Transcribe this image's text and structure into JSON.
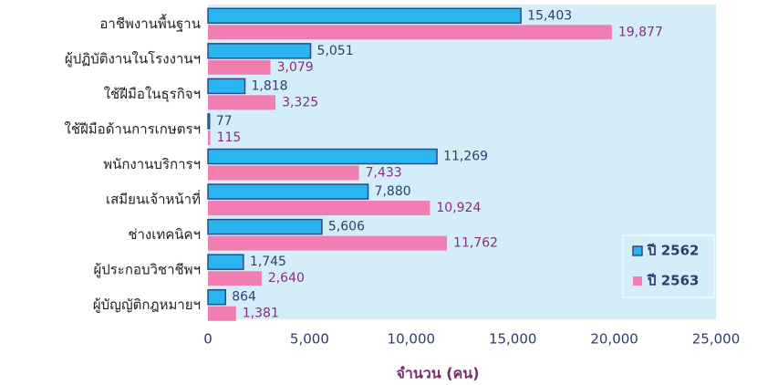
{
  "chart_data": {
    "type": "bar",
    "orientation": "horizontal",
    "categories": [
      "อาชีพงานพื้นฐาน",
      "ผู้ปฏิบัติงานในโรงงานฯ",
      "ใช้ฝีมือในธุรกิจฯ",
      "ใช้ฝีมือด้านการเกษตรฯ",
      "พนักงานบริการฯ",
      "เสมียนเจ้าหน้าที่",
      "ช่างเทคนิคฯ",
      "ผู้ประกอบวิชาชีพฯ",
      "ผู้บัญญัติกฎหมายฯ"
    ],
    "series": [
      {
        "name": "ปี 2562",
        "color": "#29b6f0",
        "values": [
          15403,
          5051,
          1818,
          77,
          11269,
          7880,
          5606,
          1745,
          864
        ],
        "value_labels": [
          "15,403",
          "5,051",
          "1,818",
          "77",
          "11,269",
          "7,880",
          "5,606",
          "1,745",
          "864"
        ]
      },
      {
        "name": "ปี 2563",
        "color": "#f07eb0",
        "values": [
          19877,
          3079,
          3325,
          115,
          7433,
          10924,
          11762,
          2640,
          1381
        ],
        "value_labels": [
          "19,877",
          "3,079",
          "3,325",
          "115",
          "7,433",
          "10,924",
          "11,762",
          "2,640",
          "1,381"
        ]
      }
    ],
    "xlabel": "จำนวน (คน)",
    "xlim": [
      0,
      25000
    ],
    "xticks": [
      0,
      {
        "value": 5000,
        "label": "5,000"
      },
      {
        "value": 10000,
        "label": "10,000"
      },
      {
        "value": 15000,
        "label": "15,000"
      },
      {
        "value": 20000,
        "label": "20,000"
      },
      {
        "value": 25000,
        "label": "25,000"
      }
    ],
    "legend": "lower right"
  }
}
